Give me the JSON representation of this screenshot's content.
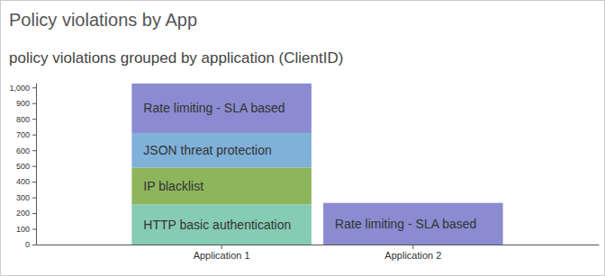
{
  "chart_data": {
    "type": "bar",
    "stacked": true,
    "title": "Policy violations by App",
    "subtitle": "policy violations grouped by application (ClientID)",
    "categories": [
      "Application 1",
      "Application 2"
    ],
    "series": [
      {
        "name": "HTTP basic authentication",
        "color": "#86cbb3",
        "values": [
          255,
          null
        ]
      },
      {
        "name": "IP blacklist",
        "color": "#8db55c",
        "values": [
          235,
          null
        ]
      },
      {
        "name": "JSON threat protection",
        "color": "#80b1d8",
        "values": [
          220,
          null
        ]
      },
      {
        "name": "Rate limiting - SLA based",
        "color": "#8a8bd0",
        "values": [
          315,
          265
        ]
      }
    ],
    "ylim": [
      0,
      1030
    ],
    "yticks": [
      0,
      100,
      200,
      300,
      400,
      500,
      600,
      700,
      800,
      900,
      {
        "value": 1000,
        "label": "1,000"
      }
    ],
    "grid": false
  }
}
